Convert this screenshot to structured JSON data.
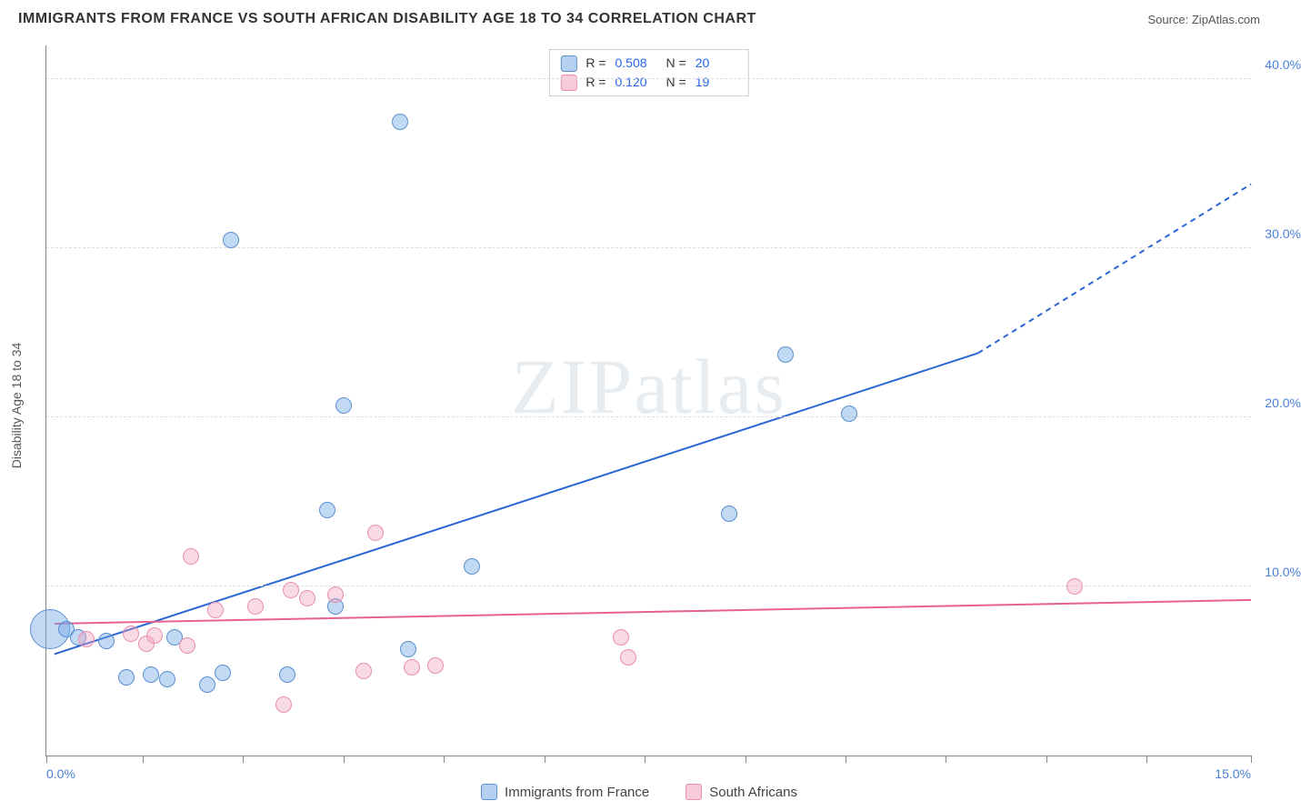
{
  "header": {
    "title": "IMMIGRANTS FROM FRANCE VS SOUTH AFRICAN DISABILITY AGE 18 TO 34 CORRELATION CHART",
    "source_prefix": "Source: ",
    "source_name": "ZipAtlas.com"
  },
  "watermark": {
    "text_a": "ZIP",
    "text_b": "atlas"
  },
  "chart": {
    "type": "scatter",
    "ylabel": "Disability Age 18 to 34",
    "xlim": [
      0,
      15
    ],
    "ylim": [
      0,
      42
    ],
    "xtick_positions": [
      0,
      1.2,
      2.45,
      3.7,
      4.95,
      6.2,
      7.45,
      8.7,
      9.95,
      11.2,
      12.45,
      13.7,
      15
    ],
    "xtick_labels_shown": {
      "0": "0.0%",
      "15": "15.0%"
    },
    "ytick_positions": [
      10,
      20,
      30,
      40
    ],
    "ytick_labels": [
      "10.0%",
      "20.0%",
      "30.0%",
      "40.0%"
    ],
    "grid_color": "#dddddd",
    "axis_color": "#888888",
    "tick_label_color": "#4a7fd8",
    "background_color": "#ffffff",
    "series": [
      {
        "key": "blue",
        "name": "Immigrants from France",
        "color_fill": "rgba(120,170,230,0.45)",
        "color_stroke": "#5a8fd0",
        "points": [
          {
            "x": 0.05,
            "y": 7.5,
            "r": 22
          },
          {
            "x": 0.25,
            "y": 7.5,
            "r": 9
          },
          {
            "x": 0.4,
            "y": 7.0,
            "r": 9
          },
          {
            "x": 0.75,
            "y": 6.8,
            "r": 9
          },
          {
            "x": 1.0,
            "y": 4.6,
            "r": 9
          },
          {
            "x": 1.3,
            "y": 4.8,
            "r": 9
          },
          {
            "x": 1.5,
            "y": 4.5,
            "r": 9
          },
          {
            "x": 1.6,
            "y": 7.0,
            "r": 9
          },
          {
            "x": 2.0,
            "y": 4.2,
            "r": 9
          },
          {
            "x": 2.2,
            "y": 4.9,
            "r": 9
          },
          {
            "x": 2.3,
            "y": 30.5,
            "r": 9
          },
          {
            "x": 3.0,
            "y": 4.8,
            "r": 9
          },
          {
            "x": 3.5,
            "y": 14.5,
            "r": 9
          },
          {
            "x": 3.6,
            "y": 8.8,
            "r": 9
          },
          {
            "x": 3.7,
            "y": 20.7,
            "r": 9
          },
          {
            "x": 4.4,
            "y": 37.5,
            "r": 9
          },
          {
            "x": 4.5,
            "y": 6.3,
            "r": 9
          },
          {
            "x": 5.3,
            "y": 11.2,
            "r": 9
          },
          {
            "x": 8.5,
            "y": 14.3,
            "r": 9
          },
          {
            "x": 9.2,
            "y": 23.7,
            "r": 9
          },
          {
            "x": 10.0,
            "y": 20.2,
            "r": 9
          }
        ],
        "trend": {
          "x1": 0.1,
          "y1": 6.0,
          "x2": 11.6,
          "y2": 23.8,
          "stroke": "#2b66d4",
          "width": 2,
          "dash_x1": 11.6,
          "dash_y1": 23.8,
          "dash_x2": 15,
          "dash_y2": 33.8
        },
        "R": "0.508",
        "N": "20"
      },
      {
        "key": "pink",
        "name": "South Africans",
        "color_fill": "rgba(240,160,190,0.4)",
        "color_stroke": "#e88fae",
        "points": [
          {
            "x": 0.5,
            "y": 6.9,
            "r": 9
          },
          {
            "x": 1.05,
            "y": 7.2,
            "r": 9
          },
          {
            "x": 1.25,
            "y": 6.6,
            "r": 9
          },
          {
            "x": 1.35,
            "y": 7.1,
            "r": 9
          },
          {
            "x": 1.75,
            "y": 6.5,
            "r": 9
          },
          {
            "x": 1.8,
            "y": 11.8,
            "r": 9
          },
          {
            "x": 2.1,
            "y": 8.6,
            "r": 9
          },
          {
            "x": 2.6,
            "y": 8.8,
            "r": 9
          },
          {
            "x": 2.95,
            "y": 3.0,
            "r": 9
          },
          {
            "x": 3.05,
            "y": 9.8,
            "r": 9
          },
          {
            "x": 3.25,
            "y": 9.3,
            "r": 9
          },
          {
            "x": 3.6,
            "y": 9.5,
            "r": 9
          },
          {
            "x": 3.95,
            "y": 5.0,
            "r": 9
          },
          {
            "x": 4.1,
            "y": 13.2,
            "r": 9
          },
          {
            "x": 4.55,
            "y": 5.2,
            "r": 9
          },
          {
            "x": 4.85,
            "y": 5.3,
            "r": 9
          },
          {
            "x": 7.15,
            "y": 7.0,
            "r": 9
          },
          {
            "x": 7.25,
            "y": 5.8,
            "r": 9
          },
          {
            "x": 12.8,
            "y": 10.0,
            "r": 9
          }
        ],
        "trend": {
          "x1": 0.1,
          "y1": 7.8,
          "x2": 15,
          "y2": 9.2,
          "stroke": "#e95f94",
          "width": 2
        },
        "R": "0.120",
        "N": "19"
      }
    ]
  },
  "legend_top": {
    "r_label": "R =",
    "n_label": "N ="
  },
  "legend_bottom": {
    "items": [
      {
        "swatch": "blue",
        "label": "Immigrants from France"
      },
      {
        "swatch": "pink",
        "label": "South Africans"
      }
    ]
  }
}
